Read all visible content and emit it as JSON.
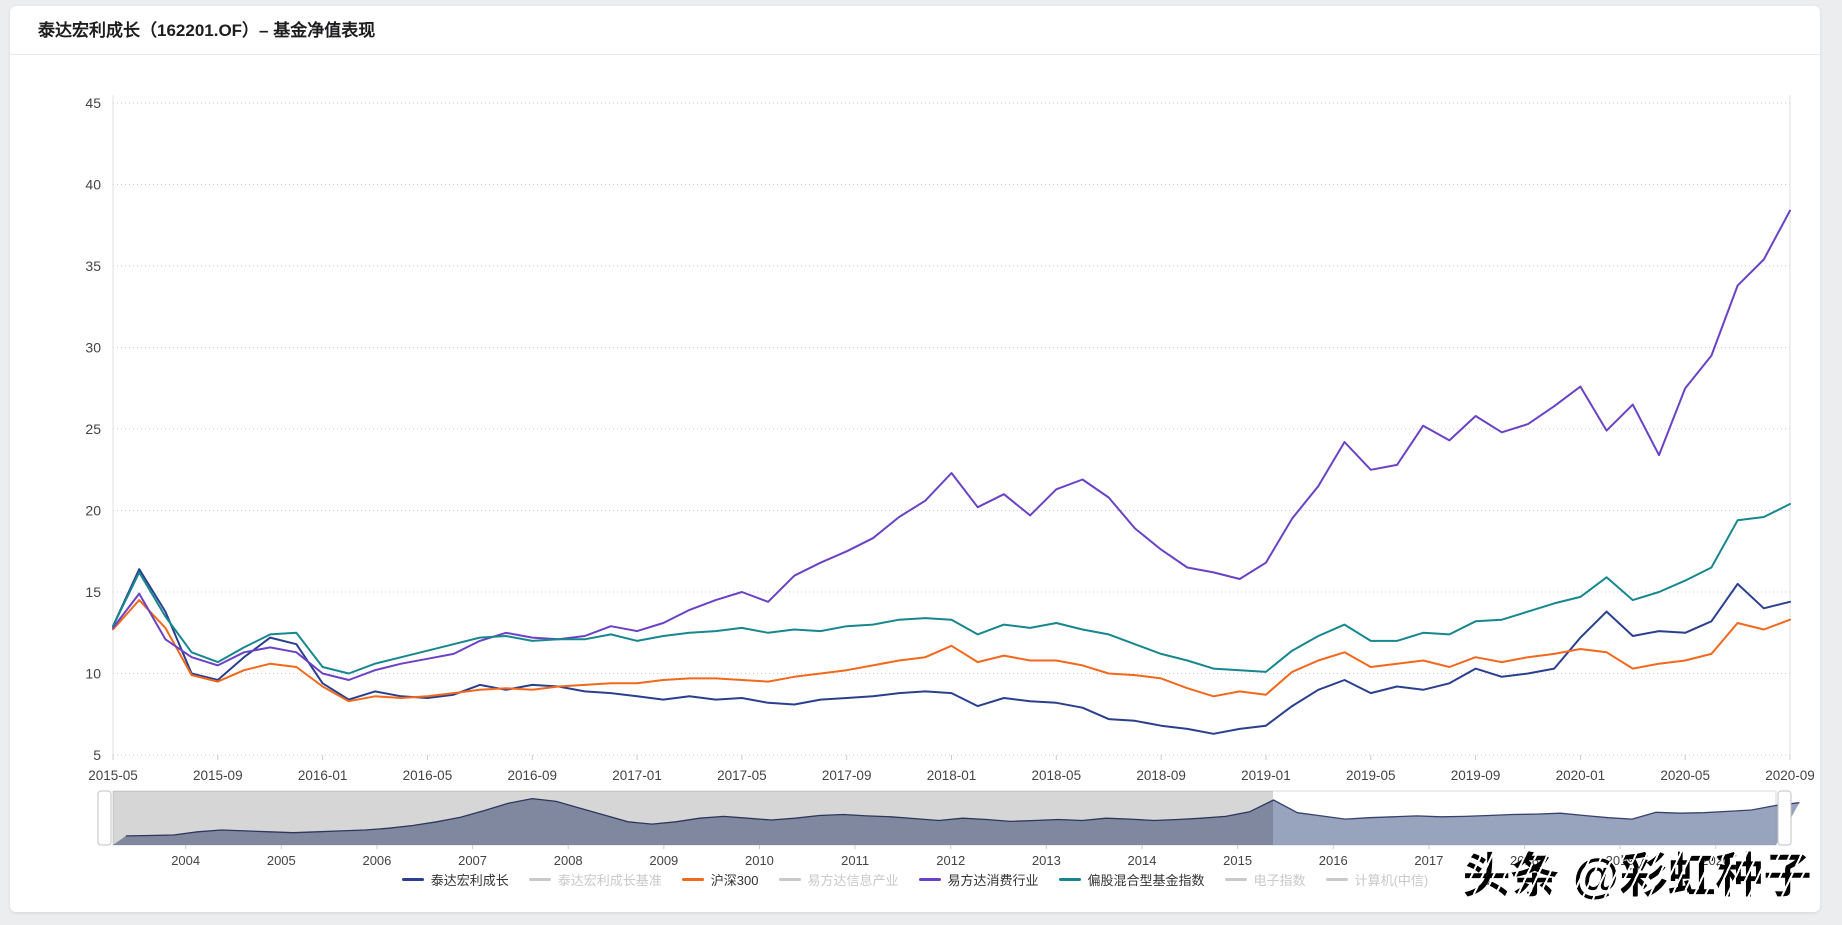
{
  "page": {
    "background": "#ecedef",
    "card_background": "#ffffff"
  },
  "watermark": {
    "text": "头条 @彩虹种子"
  },
  "chart_data": {
    "type": "line",
    "title": "泰达宏利成长（162201.OF）– 基金净值表现",
    "xlabel": "",
    "ylabel": "",
    "ylim": [
      5,
      45
    ],
    "yticks": [
      5,
      10,
      15,
      20,
      25,
      30,
      35,
      40,
      45
    ],
    "grid": true,
    "gridline_style": "dotted",
    "legend_position": "bottom",
    "x": [
      "2015-05",
      "2015-06",
      "2015-07",
      "2015-08",
      "2015-09",
      "2015-10",
      "2015-11",
      "2015-12",
      "2016-01",
      "2016-02",
      "2016-03",
      "2016-04",
      "2016-05",
      "2016-06",
      "2016-07",
      "2016-08",
      "2016-09",
      "2016-10",
      "2016-11",
      "2016-12",
      "2017-01",
      "2017-02",
      "2017-03",
      "2017-04",
      "2017-05",
      "2017-06",
      "2017-07",
      "2017-08",
      "2017-09",
      "2017-10",
      "2017-11",
      "2017-12",
      "2018-01",
      "2018-02",
      "2018-03",
      "2018-04",
      "2018-05",
      "2018-06",
      "2018-07",
      "2018-08",
      "2018-09",
      "2018-10",
      "2018-11",
      "2018-12",
      "2019-01",
      "2019-02",
      "2019-03",
      "2019-04",
      "2019-05",
      "2019-06",
      "2019-07",
      "2019-08",
      "2019-09",
      "2019-10",
      "2019-11",
      "2019-12",
      "2020-01",
      "2020-02",
      "2020-03",
      "2020-04",
      "2020-05",
      "2020-06",
      "2020-07",
      "2020-08",
      "2020-09"
    ],
    "x_tick_labels": [
      "2015-05",
      "2015-09",
      "2016-01",
      "2016-05",
      "2016-09",
      "2017-01",
      "2017-05",
      "2017-09",
      "2018-01",
      "2018-05",
      "2018-09",
      "2019-01",
      "2019-05",
      "2019-09",
      "2020-01",
      "2020-05",
      "2020-09"
    ],
    "series": [
      {
        "name": "泰达宏利成长",
        "color": "#2b3f8f",
        "active": true,
        "values": [
          12.9,
          16.4,
          13.8,
          10.0,
          9.6,
          11.0,
          12.2,
          11.8,
          9.4,
          8.4,
          8.9,
          8.6,
          8.5,
          8.7,
          9.3,
          9.0,
          9.3,
          9.2,
          8.9,
          8.8,
          8.6,
          8.4,
          8.6,
          8.4,
          8.5,
          8.2,
          8.1,
          8.4,
          8.5,
          8.6,
          8.8,
          8.9,
          8.8,
          8.0,
          8.5,
          8.3,
          8.2,
          7.9,
          7.2,
          7.1,
          6.8,
          6.6,
          6.3,
          6.6,
          6.8,
          8.0,
          9.0,
          9.6,
          8.8,
          9.2,
          9.0,
          9.4,
          10.3,
          9.8,
          10.0,
          10.3,
          12.2,
          13.8,
          12.3,
          12.6,
          12.5,
          13.2,
          15.5,
          14.0,
          14.4
        ]
      },
      {
        "name": "泰达宏利成长基准",
        "color": "#c9c9c9",
        "active": false
      },
      {
        "name": "沪深300",
        "color": "#f2681c",
        "active": true,
        "values": [
          12.7,
          14.5,
          12.8,
          9.9,
          9.5,
          10.2,
          10.6,
          10.4,
          9.2,
          8.3,
          8.6,
          8.5,
          8.6,
          8.8,
          9.0,
          9.1,
          9.0,
          9.2,
          9.3,
          9.4,
          9.4,
          9.6,
          9.7,
          9.7,
          9.6,
          9.5,
          9.8,
          10.0,
          10.2,
          10.5,
          10.8,
          11.0,
          11.7,
          10.7,
          11.1,
          10.8,
          10.8,
          10.5,
          10.0,
          9.9,
          9.7,
          9.1,
          8.6,
          8.9,
          8.7,
          10.1,
          10.8,
          11.3,
          10.4,
          10.6,
          10.8,
          10.4,
          11.0,
          10.7,
          11.0,
          11.2,
          11.5,
          11.3,
          10.3,
          10.6,
          10.8,
          11.2,
          13.1,
          12.7,
          13.3
        ]
      },
      {
        "name": "易方达信息产业",
        "color": "#c9c9c9",
        "active": false
      },
      {
        "name": "易方达消费行业",
        "color": "#6b42c6",
        "active": true,
        "values": [
          12.8,
          14.9,
          12.1,
          11.0,
          10.5,
          11.3,
          11.6,
          11.3,
          10.0,
          9.6,
          10.2,
          10.6,
          10.9,
          11.2,
          12.0,
          12.5,
          12.2,
          12.1,
          12.3,
          12.9,
          12.6,
          13.1,
          13.9,
          14.5,
          15.0,
          14.4,
          16.0,
          16.8,
          17.5,
          18.3,
          19.6,
          20.6,
          22.3,
          20.2,
          21.0,
          19.7,
          21.3,
          21.9,
          20.8,
          18.9,
          17.6,
          16.5,
          16.2,
          15.8,
          16.8,
          19.5,
          21.5,
          24.2,
          22.5,
          22.8,
          25.2,
          24.3,
          25.8,
          24.8,
          25.3,
          26.4,
          27.6,
          24.9,
          26.5,
          23.4,
          27.5,
          29.5,
          33.8,
          35.4,
          38.4
        ]
      },
      {
        "name": "偏股混合型基金指数",
        "color": "#17878f",
        "active": true,
        "values": [
          12.9,
          16.2,
          13.5,
          11.3,
          10.7,
          11.6,
          12.4,
          12.5,
          10.4,
          10.0,
          10.6,
          11.0,
          11.4,
          11.8,
          12.2,
          12.3,
          12.0,
          12.1,
          12.1,
          12.4,
          12.0,
          12.3,
          12.5,
          12.6,
          12.8,
          12.5,
          12.7,
          12.6,
          12.9,
          13.0,
          13.3,
          13.4,
          13.3,
          12.4,
          13.0,
          12.8,
          13.1,
          12.7,
          12.4,
          11.8,
          11.2,
          10.8,
          10.3,
          10.2,
          10.1,
          11.4,
          12.3,
          13.0,
          12.0,
          12.0,
          12.5,
          12.4,
          13.2,
          13.3,
          13.8,
          14.3,
          14.7,
          15.9,
          14.5,
          15.0,
          15.7,
          16.5,
          19.4,
          19.6,
          20.4
        ]
      },
      {
        "name": "电子指数",
        "color": "#c9c9c9",
        "active": false
      },
      {
        "name": "计算机(中信)",
        "color": "#c9c9c9",
        "active": false
      }
    ],
    "navigator": {
      "type": "area",
      "x_start": 2003.375,
      "x_step": 0.25,
      "values": [
        2.0,
        2.1,
        2.2,
        2.9,
        3.3,
        3.1,
        2.9,
        2.7,
        2.9,
        3.1,
        3.3,
        3.7,
        4.3,
        5.1,
        6.1,
        7.6,
        9.2,
        10.2,
        9.6,
        8.1,
        6.6,
        5.1,
        4.6,
        5.1,
        5.9,
        6.3,
        5.9,
        5.5,
        5.9,
        6.5,
        6.7,
        6.4,
        6.2,
        5.8,
        5.4,
        5.9,
        5.6,
        5.2,
        5.4,
        5.6,
        5.4,
        5.9,
        5.7,
        5.4,
        5.6,
        5.9,
        6.3,
        7.3,
        9.9,
        7.1,
        6.4,
        5.7,
        6.0,
        6.2,
        6.4,
        6.2,
        6.3,
        6.5,
        6.7,
        6.8,
        7.0,
        6.5,
        6.0,
        5.7,
        7.2,
        7.0,
        7.1,
        7.4,
        7.7,
        8.7,
        9.3
      ],
      "year_labels": [
        2004,
        2005,
        2006,
        2007,
        2008,
        2009,
        2010,
        2011,
        2012,
        2013,
        2014,
        2015,
        2016,
        2017,
        2018,
        2019,
        2020
      ],
      "window": {
        "from": "2015-05",
        "to": "2020-09"
      },
      "mask_until": 2015.37,
      "area_fill": "#8693b3",
      "area_line": "#36426e",
      "mask_color": "rgba(0,0,0,0.16)"
    }
  }
}
